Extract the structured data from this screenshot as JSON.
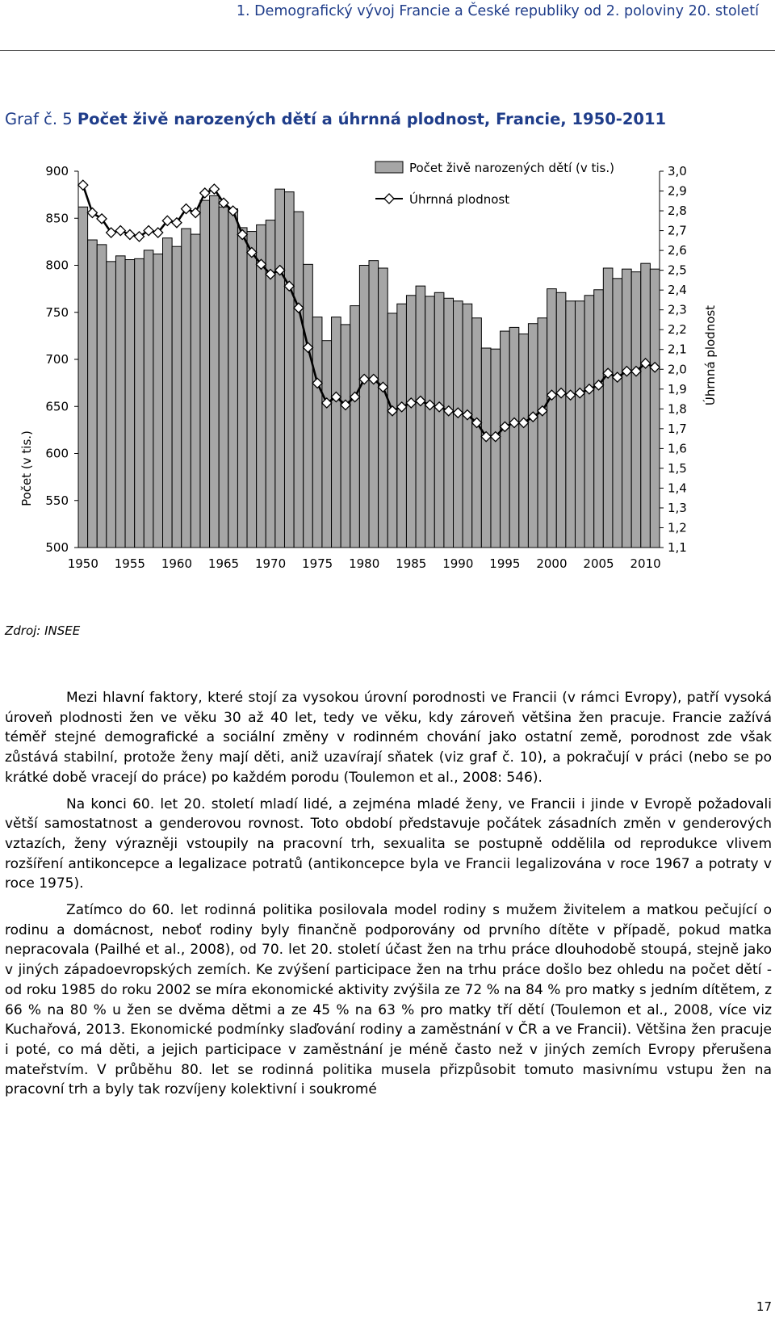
{
  "header": {
    "running_title": "1. Demografický vývoj Francie a České republiky od 2. poloviny 20. století"
  },
  "figure": {
    "label": "Graf č. 5",
    "title": "Počet živě narozených dětí a úhrnná plodnost, Francie, 1950-2011",
    "source": "Zdroj: INSEE"
  },
  "chart_data": {
    "type": "bar",
    "x_start": 1950,
    "x_end": 2011,
    "x_ticks": [
      1950,
      1955,
      1960,
      1965,
      1970,
      1975,
      1980,
      1985,
      1990,
      1995,
      2000,
      2005,
      2010
    ],
    "y_left": {
      "label": "Počet (v tis.)",
      "range": [
        500,
        900
      ],
      "ticks": [
        "500",
        "550",
        "600",
        "650",
        "700",
        "750",
        "800",
        "850",
        "900"
      ]
    },
    "y_right": {
      "label": "Úhrnná plodnost",
      "range": [
        1.1,
        3.0
      ],
      "ticks": [
        "1,1",
        "1,2",
        "1,3",
        "1,4",
        "1,5",
        "1,6",
        "1,7",
        "1,8",
        "1,9",
        "2,0",
        "2,1",
        "2,2",
        "2,3",
        "2,4",
        "2,5",
        "2,6",
        "2,7",
        "2,8",
        "2,9",
        "3,0"
      ]
    },
    "legend": {
      "placement": "top-center",
      "bars_label": "Počet živě narozených dětí (v tis.)",
      "line_label": "Úhrnná plodnost"
    },
    "series": [
      {
        "name": "Počet živě narozených dětí (v tis.)",
        "kind": "bar",
        "values": [
          862,
          827,
          822,
          804,
          810,
          806,
          807,
          816,
          812,
          829,
          820,
          839,
          833,
          869,
          874,
          862,
          860,
          840,
          836,
          843,
          848,
          881,
          878,
          857,
          801,
          745,
          720,
          745,
          737,
          757,
          800,
          805,
          797,
          749,
          759,
          768,
          778,
          767,
          771,
          765,
          762,
          759,
          744,
          712,
          711,
          730,
          734,
          727,
          738,
          744,
          775,
          771,
          762,
          762,
          768,
          774,
          797,
          786,
          796,
          793,
          802,
          796
        ]
      },
      {
        "name": "Úhrnná plodnost",
        "kind": "line",
        "values": [
          2.93,
          2.79,
          2.76,
          2.69,
          2.7,
          2.68,
          2.67,
          2.7,
          2.69,
          2.75,
          2.74,
          2.81,
          2.79,
          2.89,
          2.91,
          2.84,
          2.8,
          2.68,
          2.59,
          2.53,
          2.48,
          2.5,
          2.42,
          2.31,
          2.11,
          1.93,
          1.83,
          1.86,
          1.82,
          1.86,
          1.95,
          1.95,
          1.91,
          1.79,
          1.81,
          1.83,
          1.84,
          1.82,
          1.81,
          1.79,
          1.78,
          1.77,
          1.73,
          1.66,
          1.66,
          1.71,
          1.73,
          1.73,
          1.76,
          1.79,
          1.87,
          1.88,
          1.87,
          1.88,
          1.9,
          1.92,
          1.98,
          1.96,
          1.99,
          1.99,
          2.03,
          2.01
        ]
      }
    ]
  },
  "body": {
    "paragraphs": [
      "Mezi hlavní faktory, které stojí za vysokou úrovní porodnosti ve Francii (v rámci Evropy), patří vysoká úroveň plodnosti žen ve věku 30 až 40 let, tedy ve věku, kdy zároveň většina žen pracuje. Francie zažívá téměř stejné demografické a sociální změny v rodinném chování jako ostatní země, porodnost zde však zůstává stabilní, protože ženy mají děti, aniž uzavírají sňatek (viz graf č. 10), a pokračují v práci (nebo se po krátké době vracejí do práce) po každém porodu (Toulemon et al., 2008: 546).",
      "Na konci 60. let 20. století mladí lidé, a zejména mladé ženy, ve Francii i jinde v Evropě požadovali větší samostatnost a genderovou rovnost. Toto období představuje počátek zásadních změn v genderových vztazích, ženy výrazněji vstoupily na pracovní trh, sexualita se postupně oddělila od reprodukce vlivem rozšíření antikoncepce a legalizace potratů (antikoncepce byla ve Francii legalizována v roce 1967 a potraty v roce 1975).",
      "Zatímco do 60. let rodinná politika posilovala model rodiny s mužem živitelem a matkou pečující o rodinu a domácnost, neboť rodiny byly finančně podporovány od prvního dítěte v případě, pokud matka nepracovala (Pailhé et al., 2008), od 70. let 20. století účast žen na trhu práce dlouhodobě stoupá, stejně jako v jiných západoevropských zemích. Ke zvýšení participace žen na trhu práce došlo bez ohledu na počet dětí - od roku 1985 do roku 2002 se míra ekonomické aktivity zvýšila ze 72 % na 84 % pro matky s jedním dítětem, z 66 % na 80 % u žen se dvěma dětmi a ze 45 % na 63 % pro matky tří dětí (Toulemon et al., 2008, více viz Kuchařová, 2013. Ekonomické podmínky slaďování rodiny a zaměstnání v ČR a ve Francii). Většina žen pracuje i poté, co má děti, a jejich participace v zaměstnání je méně často než v jiných zemích Evropy přerušena mateřstvím. V průběhu 80. let se rodinná politika musela přizpůsobit tomuto masivnímu vstupu žen na pracovní trh a byly tak rozvíjeny kolektivní i soukromé"
    ]
  },
  "page_number": "17",
  "colors": {
    "heading": "#1f3d8a",
    "bar_fill": "#a6a6a6",
    "bar_stroke": "#000000",
    "line": "#000000",
    "marker_fill": "#ffffff"
  }
}
